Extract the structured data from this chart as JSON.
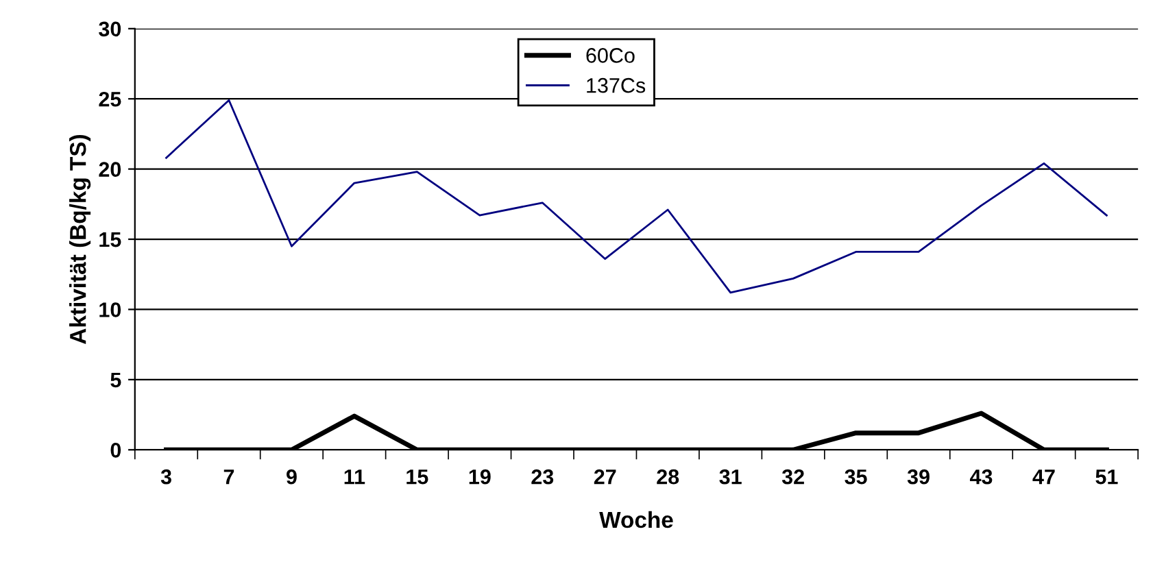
{
  "chart_data": {
    "type": "line",
    "xlabel": "Woche",
    "ylabel": "Aktivität (Bq/kg TS)",
    "categories": [
      "3",
      "7",
      "9",
      "11",
      "15",
      "19",
      "23",
      "27",
      "28",
      "31",
      "32",
      "35",
      "39",
      "43",
      "47",
      "51"
    ],
    "series": [
      {
        "name": "60Co",
        "color": "#000000",
        "values": [
          0,
          0,
          0,
          2.4,
          0,
          0,
          0,
          0,
          0,
          0,
          0,
          1.2,
          1.2,
          2.6,
          0,
          0
        ]
      },
      {
        "name": "137Cs",
        "color": "#000080",
        "values": [
          20.8,
          24.9,
          14.5,
          19.0,
          19.8,
          16.7,
          17.6,
          13.6,
          17.1,
          11.2,
          12.2,
          14.1,
          14.1,
          17.4,
          20.4,
          16.7
        ]
      }
    ],
    "ylim": [
      0,
      30
    ],
    "yticks": [
      0,
      5,
      10,
      15,
      20,
      25,
      30
    ],
    "grid": "y",
    "legend": "top",
    "marker": "none",
    "line_style": "solid"
  }
}
